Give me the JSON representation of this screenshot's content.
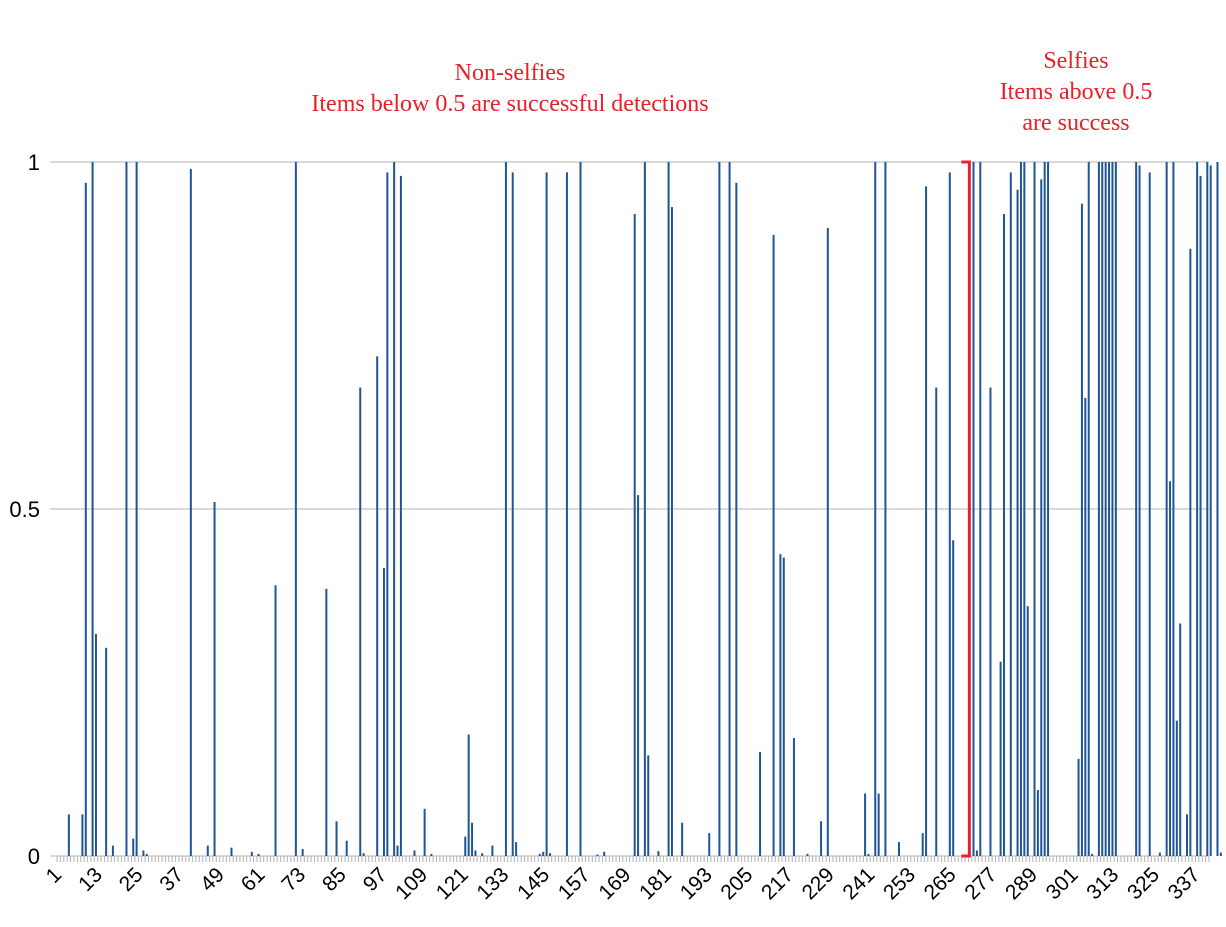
{
  "chart_data": {
    "type": "bar",
    "x_start": 1,
    "x_end": 340,
    "x_tick_labels": [
      "1",
      "13",
      "25",
      "37",
      "49",
      "61",
      "73",
      "85",
      "97",
      "109",
      "121",
      "133",
      "145",
      "157",
      "169",
      "181",
      "193",
      "205",
      "217",
      "229",
      "241",
      "253",
      "265",
      "277",
      "289",
      "301",
      "313",
      "325",
      "337"
    ],
    "y_tick_labels": [
      "0",
      "0.5",
      "1"
    ],
    "ylim": [
      0,
      1
    ],
    "grid": true,
    "bar_color": "#1f5596",
    "values": [
      {
        "x": 4,
        "y": 0.06
      },
      {
        "x": 8,
        "y": 0.06
      },
      {
        "x": 9,
        "y": 0.97
      },
      {
        "x": 11,
        "y": 1.0
      },
      {
        "x": 12,
        "y": 0.32
      },
      {
        "x": 15,
        "y": 0.3
      },
      {
        "x": 17,
        "y": 0.015
      },
      {
        "x": 21,
        "y": 1.0
      },
      {
        "x": 23,
        "y": 0.025
      },
      {
        "x": 24,
        "y": 1.0
      },
      {
        "x": 26,
        "y": 0.008
      },
      {
        "x": 27,
        "y": 0.003
      },
      {
        "x": 40,
        "y": 0.99
      },
      {
        "x": 45,
        "y": 0.015
      },
      {
        "x": 47,
        "y": 0.51
      },
      {
        "x": 52,
        "y": 0.012
      },
      {
        "x": 58,
        "y": 0.006
      },
      {
        "x": 60,
        "y": 0.003
      },
      {
        "x": 65,
        "y": 0.39
      },
      {
        "x": 71,
        "y": 1.0
      },
      {
        "x": 73,
        "y": 0.01
      },
      {
        "x": 80,
        "y": 0.385
      },
      {
        "x": 83,
        "y": 0.05
      },
      {
        "x": 86,
        "y": 0.022
      },
      {
        "x": 90,
        "y": 0.675
      },
      {
        "x": 91,
        "y": 0.004
      },
      {
        "x": 95,
        "y": 0.72
      },
      {
        "x": 97,
        "y": 0.415
      },
      {
        "x": 98,
        "y": 0.985
      },
      {
        "x": 100,
        "y": 1.0
      },
      {
        "x": 101,
        "y": 0.015
      },
      {
        "x": 102,
        "y": 0.98
      },
      {
        "x": 106,
        "y": 0.008
      },
      {
        "x": 109,
        "y": 0.068
      },
      {
        "x": 111,
        "y": 0.003
      },
      {
        "x": 121,
        "y": 0.028
      },
      {
        "x": 122,
        "y": 0.175
      },
      {
        "x": 123,
        "y": 0.048
      },
      {
        "x": 124,
        "y": 0.008
      },
      {
        "x": 126,
        "y": 0.004
      },
      {
        "x": 129,
        "y": 0.015
      },
      {
        "x": 133,
        "y": 1.0
      },
      {
        "x": 135,
        "y": 0.985
      },
      {
        "x": 136,
        "y": 0.02
      },
      {
        "x": 143,
        "y": 0.003
      },
      {
        "x": 144,
        "y": 0.006
      },
      {
        "x": 145,
        "y": 0.985
      },
      {
        "x": 146,
        "y": 0.004
      },
      {
        "x": 151,
        "y": 0.985
      },
      {
        "x": 155,
        "y": 1.0
      },
      {
        "x": 160,
        "y": 0.002
      },
      {
        "x": 162,
        "y": 0.006
      },
      {
        "x": 171,
        "y": 0.925
      },
      {
        "x": 172,
        "y": 0.52
      },
      {
        "x": 174,
        "y": 1.0
      },
      {
        "x": 175,
        "y": 0.145
      },
      {
        "x": 178,
        "y": 0.007
      },
      {
        "x": 181,
        "y": 1.0
      },
      {
        "x": 182,
        "y": 0.935
      },
      {
        "x": 185,
        "y": 0.048
      },
      {
        "x": 193,
        "y": 0.033
      },
      {
        "x": 196,
        "y": 1.0
      },
      {
        "x": 199,
        "y": 1.0
      },
      {
        "x": 201,
        "y": 0.97
      },
      {
        "x": 208,
        "y": 0.15
      },
      {
        "x": 212,
        "y": 0.895
      },
      {
        "x": 214,
        "y": 0.435
      },
      {
        "x": 215,
        "y": 0.43
      },
      {
        "x": 218,
        "y": 0.17
      },
      {
        "x": 222,
        "y": 0.003
      },
      {
        "x": 226,
        "y": 0.05
      },
      {
        "x": 228,
        "y": 0.905
      },
      {
        "x": 239,
        "y": 0.09
      },
      {
        "x": 240,
        "y": 0.003
      },
      {
        "x": 242,
        "y": 1.0
      },
      {
        "x": 243,
        "y": 0.09
      },
      {
        "x": 245,
        "y": 1.0
      },
      {
        "x": 249,
        "y": 0.02
      },
      {
        "x": 256,
        "y": 0.033
      },
      {
        "x": 257,
        "y": 0.965
      },
      {
        "x": 260,
        "y": 0.675
      },
      {
        "x": 264,
        "y": 0.985
      },
      {
        "x": 265,
        "y": 0.455
      },
      {
        "x": 271,
        "y": 1.0
      },
      {
        "x": 272,
        "y": 0.008
      },
      {
        "x": 273,
        "y": 1.0
      },
      {
        "x": 276,
        "y": 0.675
      },
      {
        "x": 279,
        "y": 0.28
      },
      {
        "x": 280,
        "y": 0.925
      },
      {
        "x": 282,
        "y": 0.985
      },
      {
        "x": 284,
        "y": 0.96
      },
      {
        "x": 285,
        "y": 1.0
      },
      {
        "x": 286,
        "y": 1.0
      },
      {
        "x": 287,
        "y": 0.36
      },
      {
        "x": 289,
        "y": 1.0
      },
      {
        "x": 290,
        "y": 0.095
      },
      {
        "x": 291,
        "y": 0.975
      },
      {
        "x": 292,
        "y": 1.0
      },
      {
        "x": 293,
        "y": 1.0
      },
      {
        "x": 302,
        "y": 0.14
      },
      {
        "x": 303,
        "y": 0.94
      },
      {
        "x": 304,
        "y": 0.66
      },
      {
        "x": 305,
        "y": 1.0
      },
      {
        "x": 306,
        "y": 0.003
      },
      {
        "x": 308,
        "y": 1.0
      },
      {
        "x": 309,
        "y": 1.0
      },
      {
        "x": 310,
        "y": 1.0
      },
      {
        "x": 311,
        "y": 1.0
      },
      {
        "x": 312,
        "y": 1.0
      },
      {
        "x": 313,
        "y": 1.0
      },
      {
        "x": 319,
        "y": 1.0
      },
      {
        "x": 320,
        "y": 0.995
      },
      {
        "x": 323,
        "y": 0.985
      },
      {
        "x": 326,
        "y": 0.005
      },
      {
        "x": 328,
        "y": 1.0
      },
      {
        "x": 329,
        "y": 0.54
      },
      {
        "x": 330,
        "y": 1.0
      },
      {
        "x": 331,
        "y": 0.195
      },
      {
        "x": 332,
        "y": 0.335
      },
      {
        "x": 334,
        "y": 0.06
      },
      {
        "x": 335,
        "y": 0.875
      },
      {
        "x": 337,
        "y": 1.0
      },
      {
        "x": 338,
        "y": 0.98
      },
      {
        "x": 340,
        "y": 1.0
      },
      {
        "x": 341,
        "y": 0.995
      },
      {
        "x": 343,
        "y": 1.0
      },
      {
        "x": 344,
        "y": 0.005
      }
    ],
    "divider": {
      "x_value": 268,
      "y_range": [
        0,
        1
      ],
      "color": "#e8202a"
    },
    "annotations": {
      "color": "#e8202a",
      "left": [
        "Non-selfies",
        "Items below 0.5 are successful detections"
      ],
      "right": [
        "Selfies",
        "Items above 0.5",
        "are success"
      ]
    }
  }
}
